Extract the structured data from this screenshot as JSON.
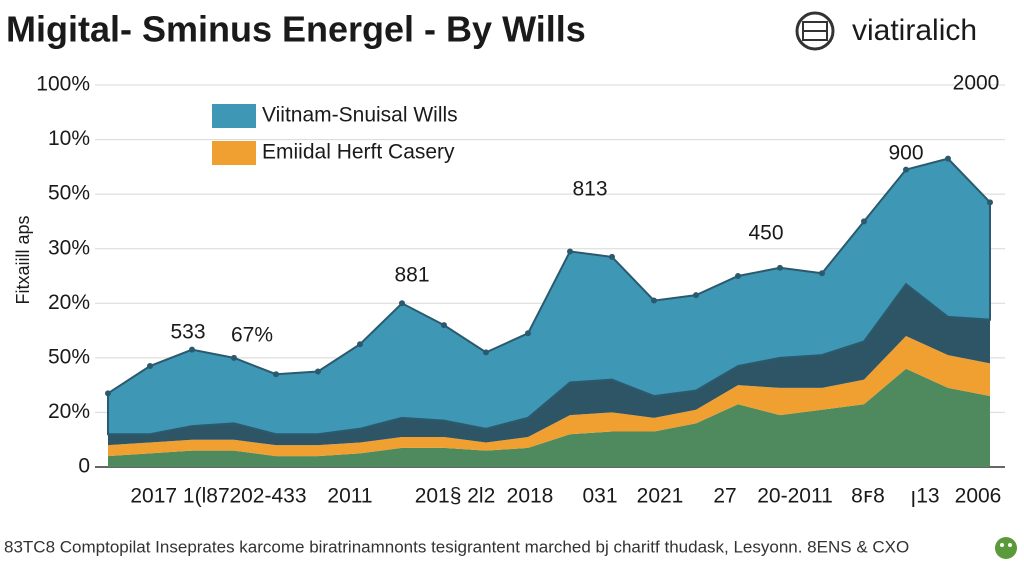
{
  "chart_data": {
    "type": "stacked_area",
    "title": "Migital- Sminus Energel - By Wills",
    "brand": "viatiralich",
    "ylabel": "Fitxaiill aps",
    "footer": "83TC8 Comptopilat Inseprates karcome biratrinamnonts tesigrantent marched bj charitf thudask, Lesyonn. 8ENS & CXO",
    "ylim": [
      0,
      140
    ],
    "yticks": [
      0,
      {
        "value": 20,
        "label": "20%"
      },
      {
        "value": 40,
        "label": "50%"
      },
      {
        "value": 60,
        "label": "20%"
      },
      {
        "value": 80,
        "label": "30%"
      },
      {
        "value": 100,
        "label": "50%"
      },
      {
        "value": 120,
        "label": "10%"
      },
      {
        "value": 140,
        "label": "100%"
      }
    ],
    "grid": true,
    "legend": "upper left",
    "xtick_labels": [
      "2017 1(l87",
      "202-433",
      "2011",
      "201§ 2l2",
      "2018",
      "031",
      "2021",
      "27",
      "20-2011",
      "8ꜰ8",
      "ꞁ13",
      "2006"
    ],
    "annotations": [
      "533",
      "67%",
      "881",
      "813",
      "450",
      "900",
      "2000"
    ],
    "series": [
      {
        "color": "#4f8a5e",
        "values": [
          4,
          5,
          6,
          6,
          4,
          4,
          5,
          7,
          7,
          6,
          7,
          12,
          13,
          13,
          16,
          23,
          19,
          21,
          23,
          36,
          29,
          26
        ]
      },
      {
        "name": "Emiidal Herft Casery",
        "color": "#f0a030",
        "values": [
          4,
          4,
          4,
          4,
          4,
          4,
          4,
          4,
          4,
          3,
          4,
          7,
          7,
          5,
          5,
          7,
          10,
          8,
          9,
          12,
          12,
          12
        ]
      },
      {
        "color": "#2e5566",
        "values": [
          4,
          3,
          5,
          6,
          4,
          4,
          5,
          7,
          6,
          5,
          7,
          12,
          12,
          8,
          7,
          7,
          11,
          12,
          14,
          19,
          14,
          16
        ]
      },
      {
        "name": "Viitnam-Snuisal Wills",
        "color": "#3d97b5",
        "values": [
          15,
          25,
          28,
          24,
          22,
          23,
          31,
          42,
          35,
          28,
          31,
          48,
          45,
          35,
          35,
          33,
          33,
          30,
          44,
          42,
          58,
          43
        ]
      }
    ]
  }
}
